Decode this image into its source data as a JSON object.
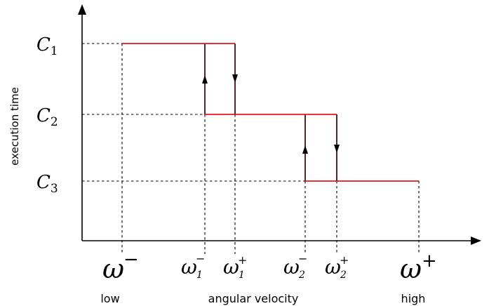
{
  "axes": {
    "ylabel": "execution time",
    "xlabel": "angular velocity",
    "x_low": "low",
    "x_high": "high"
  },
  "levels": [
    {
      "name": "C",
      "sub": "1"
    },
    {
      "name": "C",
      "sub": "2"
    },
    {
      "name": "C",
      "sub": "3"
    }
  ],
  "thresholds": {
    "omega_minus": {
      "sym": "ω",
      "sup": "−"
    },
    "omega1_minus": {
      "sym": "ω",
      "sub": "1",
      "sup": "−"
    },
    "omega1_plus": {
      "sym": "ω",
      "sub": "1",
      "sup": "+"
    },
    "omega2_minus": {
      "sym": "ω",
      "sub": "2",
      "sup": "−"
    },
    "omega2_plus": {
      "sym": "ω",
      "sub": "2",
      "sup": "+"
    },
    "omega_plus": {
      "sym": "ω",
      "sup": "+"
    }
  },
  "colors": {
    "step_line": "#e8161b",
    "axis": "#000000"
  }
}
